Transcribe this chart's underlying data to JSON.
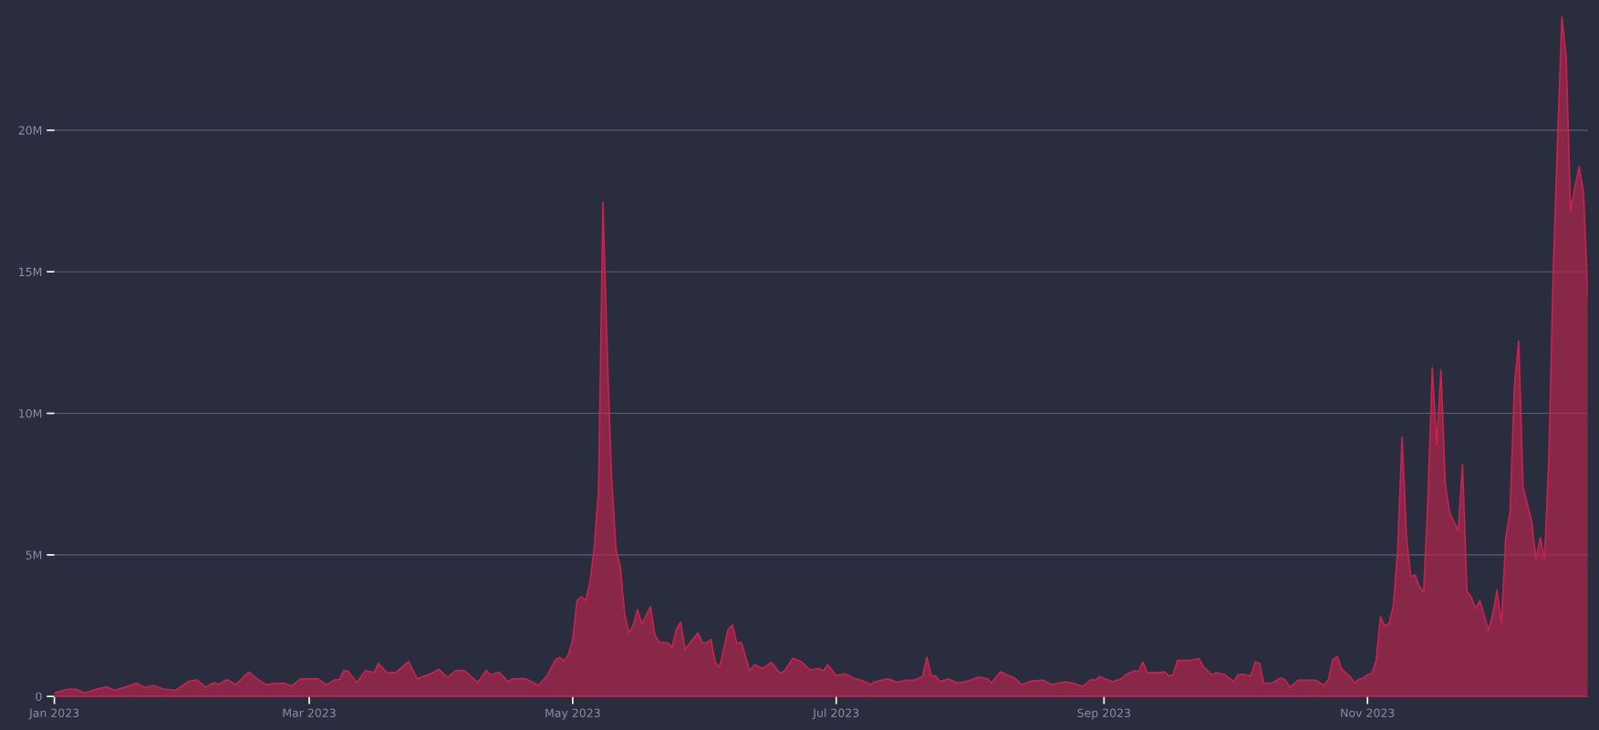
{
  "chart_data": {
    "type": "area",
    "x": [
      "2023-01-01",
      "2023-01-04",
      "2023-01-06",
      "2023-01-08",
      "2023-01-10",
      "2023-01-13",
      "2023-01-15",
      "2023-01-20",
      "2023-01-22",
      "2023-01-24",
      "2023-01-26",
      "2023-01-29",
      "2023-02-01",
      "2023-02-03",
      "2023-02-05",
      "2023-02-07",
      "2023-02-08",
      "2023-02-10",
      "2023-02-12",
      "2023-02-15",
      "2023-02-17",
      "2023-02-19",
      "2023-02-21",
      "2023-02-23",
      "2023-02-25",
      "2023-02-27",
      "2023-03-03",
      "2023-03-05",
      "2023-03-07",
      "2023-03-08",
      "2023-03-09",
      "2023-03-10",
      "2023-03-12",
      "2023-03-14",
      "2023-03-16",
      "2023-03-17",
      "2023-03-19",
      "2023-03-21",
      "2023-03-24",
      "2023-03-26",
      "2023-03-29",
      "2023-03-31",
      "2023-04-02",
      "2023-04-04",
      "2023-04-06",
      "2023-04-09",
      "2023-04-11",
      "2023-04-12",
      "2023-04-14",
      "2023-04-16",
      "2023-04-17",
      "2023-04-20",
      "2023-04-23",
      "2023-04-25",
      "2023-04-27",
      "2023-04-28",
      "2023-04-29",
      "2023-04-30",
      "2023-05-01",
      "2023-05-02",
      "2023-05-03",
      "2023-05-04",
      "2023-05-05",
      "2023-05-06",
      "2023-05-07",
      "2023-05-08",
      "2023-05-09",
      "2023-05-10",
      "2023-05-11",
      "2023-05-12",
      "2023-05-13",
      "2023-05-14",
      "2023-05-15",
      "2023-05-16",
      "2023-05-17",
      "2023-05-19",
      "2023-05-20",
      "2023-05-21",
      "2023-05-23",
      "2023-05-24",
      "2023-05-25",
      "2023-05-26",
      "2023-05-27",
      "2023-05-28",
      "2023-05-30",
      "2023-05-31",
      "2023-06-01",
      "2023-06-02",
      "2023-06-03",
      "2023-06-04",
      "2023-06-06",
      "2023-06-07",
      "2023-06-08",
      "2023-06-09",
      "2023-06-11",
      "2023-06-12",
      "2023-06-14",
      "2023-06-16",
      "2023-06-18",
      "2023-06-19",
      "2023-06-21",
      "2023-06-23",
      "2023-06-25",
      "2023-06-27",
      "2023-06-28",
      "2023-06-29",
      "2023-07-01",
      "2023-07-03",
      "2023-07-05",
      "2023-07-07",
      "2023-07-09",
      "2023-07-10",
      "2023-07-13",
      "2023-07-15",
      "2023-07-17",
      "2023-07-19",
      "2023-07-21",
      "2023-07-22",
      "2023-07-23",
      "2023-07-24",
      "2023-07-25",
      "2023-07-27",
      "2023-07-29",
      "2023-07-31",
      "2023-08-03",
      "2023-08-05",
      "2023-08-06",
      "2023-08-08",
      "2023-08-10",
      "2023-08-11",
      "2023-08-13",
      "2023-08-15",
      "2023-08-18",
      "2023-08-20",
      "2023-08-23",
      "2023-08-25",
      "2023-08-27",
      "2023-08-29",
      "2023-08-30",
      "2023-08-31",
      "2023-09-03",
      "2023-09-05",
      "2023-09-06",
      "2023-09-08",
      "2023-09-09",
      "2023-09-10",
      "2023-09-11",
      "2023-09-14",
      "2023-09-15",
      "2023-09-16",
      "2023-09-17",
      "2023-09-18",
      "2023-09-21",
      "2023-09-23",
      "2023-09-24",
      "2023-09-26",
      "2023-09-27",
      "2023-09-29",
      "2023-10-01",
      "2023-10-02",
      "2023-10-03",
      "2023-10-05",
      "2023-10-06",
      "2023-10-07",
      "2023-10-08",
      "2023-10-10",
      "2023-10-12",
      "2023-10-13",
      "2023-10-14",
      "2023-10-16",
      "2023-10-20",
      "2023-10-22",
      "2023-10-23",
      "2023-10-24",
      "2023-10-25",
      "2023-10-26",
      "2023-10-28",
      "2023-10-29",
      "2023-10-30",
      "2023-10-31",
      "2023-11-01",
      "2023-11-02",
      "2023-11-03",
      "2023-11-04",
      "2023-11-05",
      "2023-11-06",
      "2023-11-07",
      "2023-11-08",
      "2023-11-09",
      "2023-11-10",
      "2023-11-11",
      "2023-11-12",
      "2023-11-13",
      "2023-11-14",
      "2023-11-15",
      "2023-11-16",
      "2023-11-17",
      "2023-11-18",
      "2023-11-19",
      "2023-11-20",
      "2023-11-22",
      "2023-11-23",
      "2023-11-24",
      "2023-11-25",
      "2023-11-26",
      "2023-11-27",
      "2023-11-29",
      "2023-11-30",
      "2023-12-01",
      "2023-12-02",
      "2023-12-03",
      "2023-12-04",
      "2023-12-05",
      "2023-12-06",
      "2023-12-07",
      "2023-12-09",
      "2023-12-10",
      "2023-12-11",
      "2023-12-12",
      "2023-12-13",
      "2023-12-14",
      "2023-12-15",
      "2023-12-16",
      "2023-12-17",
      "2023-12-18",
      "2023-12-19",
      "2023-12-20",
      "2023-12-21",
      "2023-12-22"
    ],
    "series": [
      {
        "color": "#c8234f",
        "values": [
          120000,
          250000,
          250000,
          120000,
          220000,
          340000,
          210000,
          460000,
          310000,
          390000,
          270000,
          210000,
          520000,
          590000,
          330000,
          490000,
          420000,
          590000,
          420000,
          860000,
          620000,
          410000,
          460000,
          470000,
          370000,
          620000,
          620000,
          410000,
          590000,
          590000,
          910000,
          890000,
          490000,
          910000,
          840000,
          1170000,
          840000,
          840000,
          1230000,
          620000,
          790000,
          960000,
          680000,
          920000,
          910000,
          490000,
          920000,
          760000,
          860000,
          520000,
          620000,
          630000,
          390000,
          710000,
          1290000,
          1380000,
          1250000,
          1480000,
          1990000,
          3390000,
          3520000,
          3390000,
          4030000,
          5300000,
          7340000,
          17460000,
          12050000,
          7720000,
          5200000,
          4600000,
          2940000,
          2240000,
          2500000,
          3070000,
          2560000,
          3160000,
          2180000,
          1920000,
          1890000,
          1730000,
          2370000,
          2620000,
          1670000,
          1860000,
          2240000,
          1890000,
          1890000,
          2010000,
          1200000,
          1030000,
          2370000,
          2520000,
          1860000,
          1920000,
          900000,
          1120000,
          990000,
          1200000,
          820000,
          900000,
          1350000,
          1220000,
          930000,
          990000,
          900000,
          1120000,
          740000,
          800000,
          650000,
          560000,
          420000,
          520000,
          620000,
          500000,
          570000,
          570000,
          700000,
          1380000,
          730000,
          730000,
          520000,
          620000,
          480000,
          520000,
          680000,
          620000,
          480000,
          870000,
          730000,
          680000,
          410000,
          540000,
          570000,
          410000,
          520000,
          460000,
          350000,
          590000,
          570000,
          700000,
          520000,
          620000,
          760000,
          910000,
          870000,
          1220000,
          840000,
          840000,
          870000,
          730000,
          760000,
          1270000,
          1270000,
          1340000,
          1050000,
          760000,
          840000,
          760000,
          520000,
          760000,
          780000,
          730000,
          1220000,
          1170000,
          460000,
          480000,
          660000,
          570000,
          320000,
          570000,
          570000,
          390000,
          620000,
          1320000,
          1410000,
          970000,
          690000,
          480000,
          610000,
          640000,
          770000,
          800000,
          1260000,
          2820000,
          2490000,
          2570000,
          3230000,
          5190000,
          9160000,
          5680000,
          4240000,
          4290000,
          3880000,
          3690000,
          6990000,
          11610000,
          8880000,
          11530000,
          7490000,
          6500000,
          5850000,
          8190000,
          3720000,
          3520000,
          3100000,
          3390000,
          2330000,
          2900000,
          3750000,
          2570000,
          5600000,
          6500000,
          10930000,
          12560000,
          7400000,
          6180000,
          4860000,
          5600000,
          4860000,
          8470000,
          15020000,
          19600000,
          24000000,
          22550000,
          17150000,
          17970000,
          18710000,
          17800000,
          14120000
        ]
      }
    ],
    "xlim": [
      "2023-01-01",
      "2023-12-22"
    ],
    "xticks": [
      {
        "value": "2023-01-01",
        "label": "Jan 2023"
      },
      {
        "value": "2023-03-01",
        "label": "Mar 2023"
      },
      {
        "value": "2023-05-01",
        "label": "May 2023"
      },
      {
        "value": "2023-07-01",
        "label": "Jul 2023"
      },
      {
        "value": "2023-09-01",
        "label": "Sep 2023"
      },
      {
        "value": "2023-11-01",
        "label": "Nov 2023"
      }
    ],
    "ylim": [
      0,
      24600000
    ],
    "yticks": [
      0,
      {
        "value": 5000000,
        "label": "5M"
      },
      {
        "value": 10000000,
        "label": "10M"
      },
      {
        "value": 15000000,
        "label": "15M"
      },
      {
        "value": 20000000,
        "label": "20M"
      }
    ],
    "grid": "y"
  }
}
